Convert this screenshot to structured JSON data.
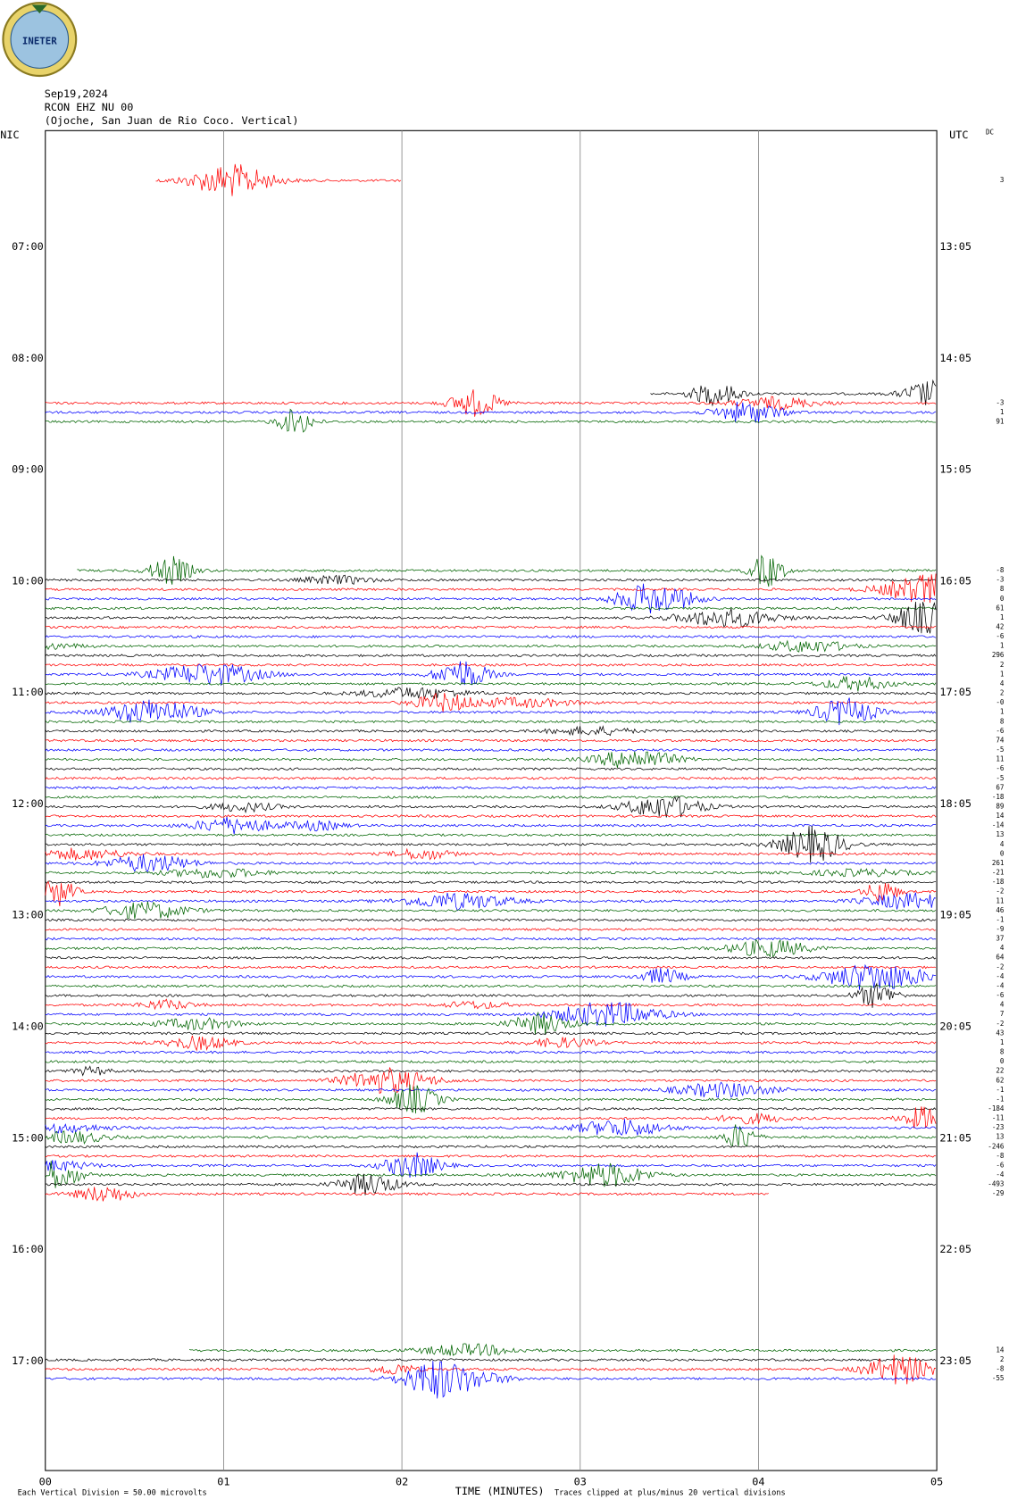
{
  "logo": {
    "text": "INETER"
  },
  "header": {
    "date": "Sep19,2024",
    "station": "RCON EHZ NU 00",
    "location": "(Ojoche, San Juan de Rio Coco. Vertical)"
  },
  "left_axis": {
    "title": "NIC",
    "labels": [
      "07:00",
      "08:00",
      "09:00",
      "10:00",
      "11:00",
      "12:00",
      "13:00",
      "14:00",
      "15:00",
      "16:00",
      "17:00"
    ]
  },
  "right_axis": {
    "title": "UTC",
    "labels": [
      "13:05",
      "14:05",
      "15:05",
      "16:05",
      "17:05",
      "18:05",
      "19:05",
      "20:05",
      "21:05",
      "22:05",
      "23:05"
    ]
  },
  "dc_title": "DC",
  "x_axis": {
    "title": "TIME (MINUTES)",
    "ticks": [
      "00",
      "01",
      "02",
      "03",
      "04",
      "05"
    ]
  },
  "footer": {
    "scale": "Each Vertical Division =   50.00 microvolts",
    "clip": "Traces clipped at plus/minus 20 vertical divisions"
  },
  "traces": [
    {
      "color": "red",
      "dc": "3"
    },
    {
      "color": "black",
      "dc": null
    },
    {
      "color": "red",
      "dc": "-3"
    },
    {
      "color": "blue",
      "dc": "1"
    },
    {
      "color": "green",
      "dc": "91"
    },
    {
      "color": "green",
      "dc": "-8"
    },
    {
      "color": "black",
      "dc": "-3"
    },
    {
      "color": "red",
      "dc": "8"
    },
    {
      "color": "blue",
      "dc": "0"
    },
    {
      "color": "green",
      "dc": "61"
    },
    {
      "color": "black",
      "dc": "1"
    },
    {
      "color": "red",
      "dc": "42"
    },
    {
      "color": "blue",
      "dc": "-6"
    },
    {
      "color": "green",
      "dc": "1"
    },
    {
      "color": "black",
      "dc": "296"
    },
    {
      "color": "red",
      "dc": "2"
    },
    {
      "color": "blue",
      "dc": "1"
    },
    {
      "color": "green",
      "dc": "4"
    },
    {
      "color": "black",
      "dc": "2"
    },
    {
      "color": "red",
      "dc": "-0"
    },
    {
      "color": "blue",
      "dc": "1"
    },
    {
      "color": "green",
      "dc": "8"
    },
    {
      "color": "black",
      "dc": "-6"
    },
    {
      "color": "red",
      "dc": "74"
    },
    {
      "color": "blue",
      "dc": "-5"
    },
    {
      "color": "green",
      "dc": "11"
    },
    {
      "color": "black",
      "dc": "-6"
    },
    {
      "color": "red",
      "dc": "-5"
    },
    {
      "color": "blue",
      "dc": "67"
    },
    {
      "color": "green",
      "dc": "-18"
    },
    {
      "color": "black",
      "dc": "89"
    },
    {
      "color": "red",
      "dc": "14"
    },
    {
      "color": "blue",
      "dc": "-14"
    },
    {
      "color": "green",
      "dc": "13"
    },
    {
      "color": "black",
      "dc": "4"
    },
    {
      "color": "red",
      "dc": "0"
    },
    {
      "color": "blue",
      "dc": "261"
    },
    {
      "color": "green",
      "dc": "-21"
    },
    {
      "color": "black",
      "dc": "-18"
    },
    {
      "color": "red",
      "dc": "-2"
    },
    {
      "color": "blue",
      "dc": "11"
    },
    {
      "color": "green",
      "dc": "46"
    },
    {
      "color": "black",
      "dc": "-1"
    },
    {
      "color": "red",
      "dc": "-9"
    },
    {
      "color": "blue",
      "dc": "37"
    },
    {
      "color": "green",
      "dc": "4"
    },
    {
      "color": "black",
      "dc": "64"
    },
    {
      "color": "red",
      "dc": "-2"
    },
    {
      "color": "blue",
      "dc": "-4"
    },
    {
      "color": "green",
      "dc": "-4"
    },
    {
      "color": "black",
      "dc": "-6"
    },
    {
      "color": "red",
      "dc": "4"
    },
    {
      "color": "blue",
      "dc": "7"
    },
    {
      "color": "green",
      "dc": "-2"
    },
    {
      "color": "black",
      "dc": "43"
    },
    {
      "color": "red",
      "dc": "1"
    },
    {
      "color": "blue",
      "dc": "8"
    },
    {
      "color": "green",
      "dc": "0"
    },
    {
      "color": "black",
      "dc": "22"
    },
    {
      "color": "red",
      "dc": "62"
    },
    {
      "color": "blue",
      "dc": "-1"
    },
    {
      "color": "green",
      "dc": "-1"
    },
    {
      "color": "black",
      "dc": "-184"
    },
    {
      "color": "red",
      "dc": "-11"
    },
    {
      "color": "blue",
      "dc": "-23"
    },
    {
      "color": "green",
      "dc": "13"
    },
    {
      "color": "black",
      "dc": "-246"
    },
    {
      "color": "red",
      "dc": "-8"
    },
    {
      "color": "blue",
      "dc": "-6"
    },
    {
      "color": "green",
      "dc": "-4"
    },
    {
      "color": "black",
      "dc": "-493"
    },
    {
      "color": "red",
      "dc": "-29"
    },
    {
      "color": "green",
      "dc": "14"
    },
    {
      "color": "black",
      "dc": "2"
    },
    {
      "color": "red",
      "dc": "-8"
    },
    {
      "color": "blue",
      "dc": "-55"
    }
  ]
}
